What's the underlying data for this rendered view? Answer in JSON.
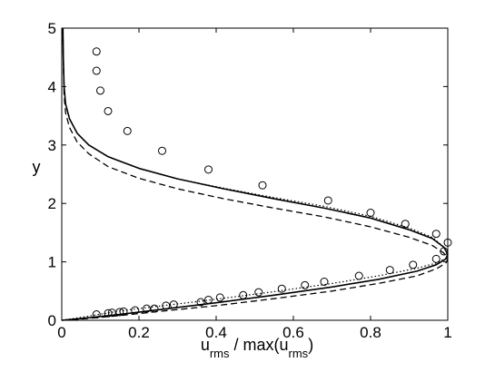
{
  "chart_data": {
    "type": "line",
    "title": "",
    "xlabel": {
      "parts": [
        {
          "text": "u",
          "sub": false
        },
        {
          "text": "rms",
          "sub": true
        },
        {
          "text": " / max(u",
          "sub": false
        },
        {
          "text": "rms",
          "sub": true
        },
        {
          "text": ")",
          "sub": false
        }
      ]
    },
    "ylabel": "y",
    "xlim": [
      0,
      1
    ],
    "ylim": [
      0,
      5
    ],
    "xticks": [
      "0",
      "0.2",
      "0.4",
      "0.6",
      "0.8",
      "1"
    ],
    "yticks": [
      "0",
      "1",
      "2",
      "3",
      "4",
      "5"
    ],
    "grid": false,
    "legend": "none",
    "series": [
      {
        "style": "solid",
        "x": [
          0.0,
          0.05,
          0.15,
          0.25,
          0.4,
          0.55,
          0.7,
          0.82,
          0.92,
          0.97,
          0.995,
          1.0,
          0.99,
          0.96,
          0.9,
          0.8,
          0.68,
          0.55,
          0.42,
          0.3,
          0.2,
          0.12,
          0.07,
          0.04,
          0.02,
          0.01,
          0.006,
          0.004,
          0.003
        ],
        "y": [
          0.0,
          0.03,
          0.1,
          0.18,
          0.3,
          0.43,
          0.57,
          0.7,
          0.84,
          0.95,
          1.05,
          1.13,
          1.25,
          1.4,
          1.55,
          1.75,
          1.92,
          2.08,
          2.25,
          2.42,
          2.6,
          2.8,
          3.0,
          3.2,
          3.45,
          3.7,
          4.0,
          4.5,
          5.0
        ]
      },
      {
        "style": "dashed",
        "x": [
          0.0,
          0.05,
          0.15,
          0.25,
          0.4,
          0.55,
          0.7,
          0.82,
          0.92,
          0.97,
          0.995,
          1.0,
          0.99,
          0.96,
          0.9,
          0.8,
          0.68,
          0.55,
          0.42,
          0.3,
          0.2,
          0.12,
          0.07,
          0.04,
          0.02,
          0.01,
          0.006,
          0.004,
          0.003
        ],
        "y": [
          0.0,
          0.02,
          0.08,
          0.15,
          0.25,
          0.37,
          0.5,
          0.63,
          0.76,
          0.88,
          0.98,
          1.05,
          1.15,
          1.28,
          1.42,
          1.6,
          1.77,
          1.92,
          2.08,
          2.25,
          2.43,
          2.63,
          2.85,
          3.05,
          3.3,
          3.55,
          3.85,
          4.4,
          5.0
        ]
      },
      {
        "style": "dotted",
        "x": [
          0.0,
          0.05,
          0.15,
          0.25,
          0.4,
          0.55,
          0.7,
          0.82,
          0.92,
          0.97,
          0.995,
          1.0,
          0.99,
          0.96,
          0.9,
          0.8,
          0.68,
          0.55,
          0.42,
          0.3,
          0.2,
          0.12,
          0.07,
          0.04,
          0.02,
          0.01,
          0.006,
          0.004,
          0.003
        ],
        "y": [
          0.0,
          0.05,
          0.16,
          0.24,
          0.36,
          0.49,
          0.63,
          0.76,
          0.89,
          0.98,
          1.06,
          1.13,
          1.25,
          1.42,
          1.58,
          1.78,
          1.95,
          2.1,
          2.26,
          2.42,
          2.6,
          2.8,
          3.0,
          3.2,
          3.45,
          3.7,
          4.0,
          4.5,
          5.0
        ]
      },
      {
        "style": "circles",
        "x": [
          0.09,
          0.12,
          0.13,
          0.15,
          0.16,
          0.19,
          0.22,
          0.24,
          0.27,
          0.29,
          0.36,
          0.38,
          0.41,
          0.47,
          0.51,
          0.57,
          0.63,
          0.68,
          0.77,
          0.85,
          0.91,
          0.97,
          0.99,
          1.0,
          0.97,
          0.89,
          0.8,
          0.69,
          0.52,
          0.38,
          0.26,
          0.17,
          0.12,
          0.1,
          0.09,
          0.09
        ],
        "y": [
          0.1,
          0.12,
          0.13,
          0.14,
          0.15,
          0.17,
          0.2,
          0.2,
          0.25,
          0.27,
          0.31,
          0.35,
          0.39,
          0.43,
          0.48,
          0.54,
          0.6,
          0.66,
          0.76,
          0.86,
          0.95,
          1.05,
          1.18,
          1.33,
          1.48,
          1.65,
          1.84,
          2.05,
          2.31,
          2.58,
          2.9,
          3.24,
          3.58,
          3.93,
          4.27,
          4.6
        ]
      }
    ]
  }
}
